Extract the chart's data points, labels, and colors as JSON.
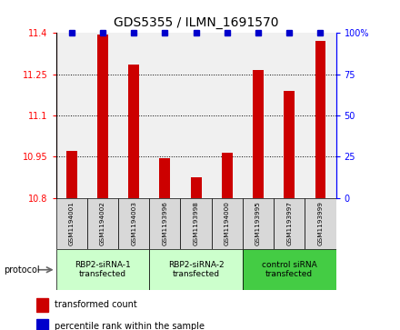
{
  "title": "GDS5355 / ILMN_1691570",
  "samples": [
    "GSM1194001",
    "GSM1194002",
    "GSM1194003",
    "GSM1193996",
    "GSM1193998",
    "GSM1194000",
    "GSM1193995",
    "GSM1193997",
    "GSM1193999"
  ],
  "red_values": [
    10.97,
    11.395,
    11.285,
    10.945,
    10.875,
    10.965,
    11.265,
    11.19,
    11.37
  ],
  "blue_values": [
    100,
    100,
    100,
    100,
    100,
    100,
    100,
    100,
    100
  ],
  "ylim_left": [
    10.8,
    11.4
  ],
  "ylim_right": [
    0,
    100
  ],
  "yticks_left": [
    10.8,
    10.95,
    11.1,
    11.25,
    11.4
  ],
  "yticks_right": [
    0,
    25,
    50,
    75,
    100
  ],
  "bar_color": "#cc0000",
  "dot_color": "#0000cc",
  "bar_width": 0.35,
  "background_color": "#ffffff",
  "plot_bg_color": "#f0f0f0",
  "grid_lines": [
    10.95,
    11.1,
    11.25
  ],
  "legend_red": "transformed count",
  "legend_blue": "percentile rank within the sample",
  "protocol_label": "protocol",
  "group_colors": [
    "#ccffcc",
    "#ccffcc",
    "#44cc44"
  ],
  "group_starts": [
    0,
    3,
    6
  ],
  "group_ends": [
    3,
    6,
    9
  ],
  "group_labels": [
    "RBP2-siRNA-1\ntransfected",
    "RBP2-siRNA-2\ntransfected",
    "control siRNA\ntransfected"
  ]
}
